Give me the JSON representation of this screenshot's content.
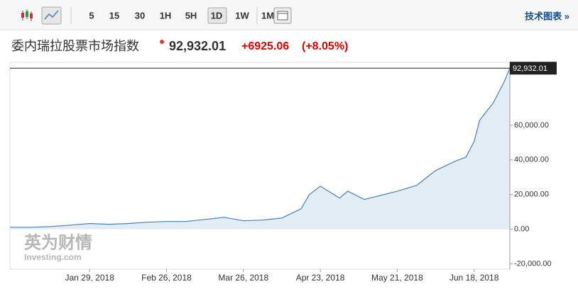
{
  "toolbar": {
    "intervals": [
      "5",
      "15",
      "30",
      "1H",
      "5H",
      "1D",
      "1W",
      "1M"
    ],
    "link": "技术图表 »"
  },
  "header": {
    "title": "委内瑞拉股票市场指数",
    "price": "92,932.01",
    "change": "+6925.06",
    "change_pct": "(+8.05%)"
  },
  "watermark": {
    "brand": "英为财情",
    "site": "Investing.com"
  },
  "chart_data": {
    "type": "area",
    "x": [
      "2017-12-31",
      "2018-01-08",
      "2018-01-15",
      "2018-01-22",
      "2018-01-29",
      "2018-02-05",
      "2018-02-12",
      "2018-02-19",
      "2018-02-26",
      "2018-03-05",
      "2018-03-12",
      "2018-03-19",
      "2018-03-26",
      "2018-04-02",
      "2018-04-09",
      "2018-04-16",
      "2018-04-19",
      "2018-04-23",
      "2018-04-30",
      "2018-05-03",
      "2018-05-09",
      "2018-05-21",
      "2018-05-28",
      "2018-06-04",
      "2018-06-11",
      "2018-06-15",
      "2018-06-18",
      "2018-06-20",
      "2018-06-25",
      "2018-06-29",
      "2018-07-01"
    ],
    "values": [
      1200,
      1200,
      1600,
      2400,
      3300,
      2900,
      3300,
      4100,
      4500,
      4500,
      5700,
      6900,
      4900,
      5300,
      6500,
      11800,
      20000,
      24900,
      18000,
      22000,
      17200,
      22000,
      25300,
      33900,
      39200,
      41600,
      50600,
      62900,
      73000,
      85300,
      92932.01
    ],
    "color": "#4a7fb5",
    "fill": "#e3edf6",
    "xlim": [
      "2017-12-31",
      "2018-07-01"
    ],
    "xticks": [
      {
        "value": "2018-01-29",
        "label": "Jan 29, 2018"
      },
      {
        "value": "2018-02-26",
        "label": "Feb 26, 2018"
      },
      {
        "value": "2018-03-26",
        "label": "Mar 26, 2018"
      },
      {
        "value": "2018-04-23",
        "label": "Apr 23, 2018"
      },
      {
        "value": "2018-05-21",
        "label": "May 21, 2018"
      },
      {
        "value": "2018-06-18",
        "label": "Jun 18, 2018"
      }
    ],
    "ylim": [
      -23000,
      96300
    ],
    "yticks": [
      {
        "value": -20000,
        "label": "-20,000.00"
      },
      {
        "value": 0,
        "label": "0.00"
      },
      {
        "value": 20000,
        "label": "20,000.00"
      },
      {
        "value": 40000,
        "label": "40,000.00"
      },
      {
        "value": 60000,
        "label": "60,000.00"
      }
    ],
    "price_line": {
      "value": 92932.01,
      "label": "92,932.01"
    }
  }
}
